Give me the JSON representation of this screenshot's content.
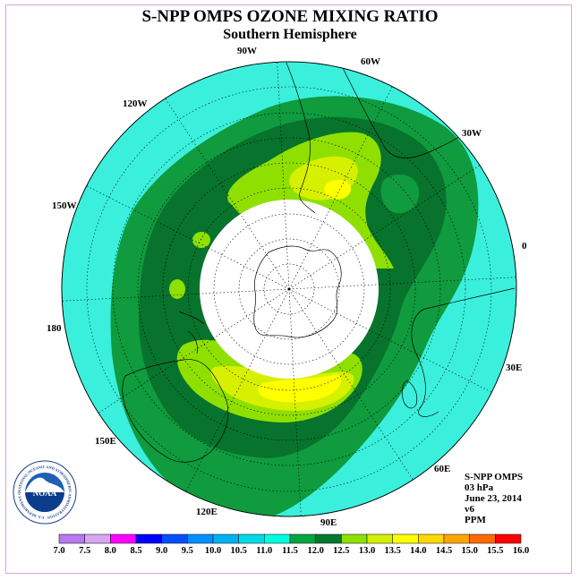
{
  "title": "S-NPP OMPS OZONE MIXING RATIO",
  "subtitle": "Southern Hemisphere",
  "longitude_labels": [
    "90W",
    "60W",
    "30W",
    "0",
    "30E",
    "60E",
    "90E",
    "120E",
    "150E",
    "180",
    "150W",
    "120W"
  ],
  "info": {
    "instrument": "S-NPP OMPS",
    "level": "03 hPa",
    "date": "June 23, 2014",
    "version": "v6",
    "units": "PPM"
  },
  "logo": {
    "text": "NOAA",
    "ring_text": "NATIONAL OCEANIC AND ATMOSPHERIC ADMINISTRATION · U.S. DEPARTMENT OF COMMERCE"
  },
  "colorbar": {
    "labels": [
      "7.0",
      "7.5",
      "8.0",
      "8.5",
      "9.0",
      "9.5",
      "10.0",
      "10.5",
      "11.0",
      "11.5",
      "12.0",
      "12.5",
      "13.0",
      "13.5",
      "14.0",
      "14.5",
      "15.0",
      "15.5",
      "16.0"
    ],
    "colors": [
      "#b779f0",
      "#d8a6f0",
      "#ff00ff",
      "#0000ff",
      "#0050ff",
      "#0090ff",
      "#00b0f0",
      "#00d8e8",
      "#00ffe0",
      "#00a640",
      "#007a2e",
      "#8ee000",
      "#d2f000",
      "#ffff00",
      "#ffd700",
      "#ffa500",
      "#ff6a00",
      "#ff0000",
      "#9b5a3c"
    ]
  },
  "map_colors": {
    "ocean_background": "#3af0dc",
    "band_11_5": "#0f9b3e",
    "band_12_0": "#08732c",
    "band_12_5": "#8fe000",
    "band_13_0": "#d6f000",
    "band_13_5": "#ffff00",
    "no_data": "#ffffff"
  }
}
